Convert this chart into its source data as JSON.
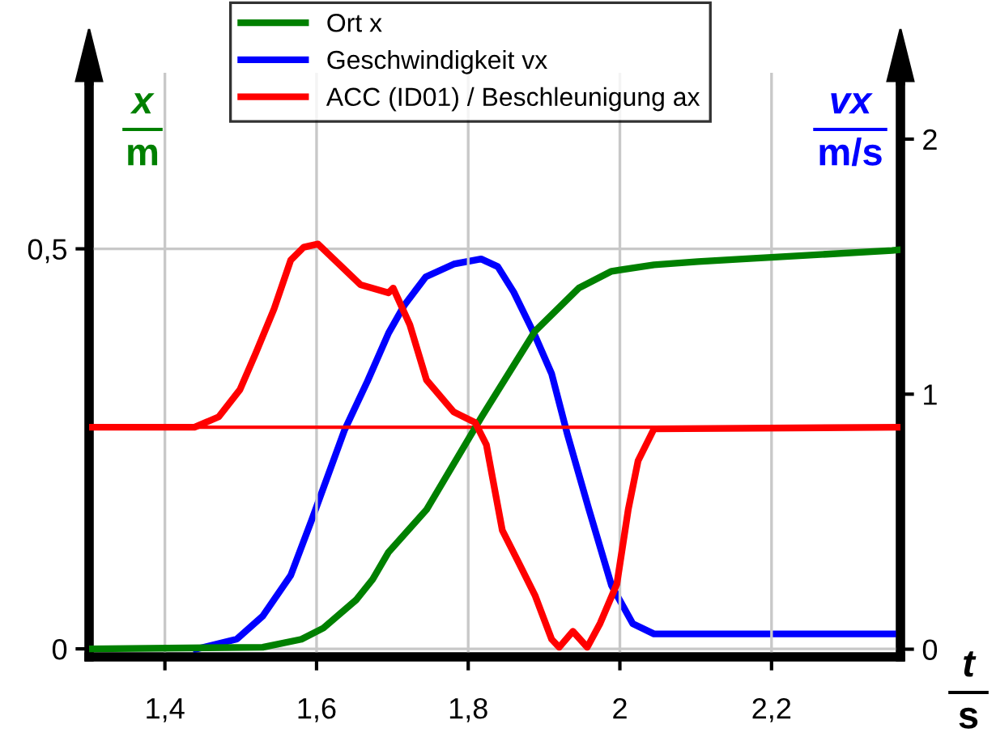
{
  "chart_data": {
    "type": "line",
    "xlabel": "t\ns",
    "ylabel": "x\nm",
    "y2label": "vx\nm/s",
    "xlim": [
      1.3,
      2.37
    ],
    "xticks": [
      {
        "value": 1.4,
        "label": "1,4"
      },
      {
        "value": 1.6,
        "label": "1,6"
      },
      {
        "value": 1.8,
        "label": "1,8"
      },
      {
        "value": 2,
        "label": "2"
      },
      {
        "value": 2.2,
        "label": "2,2"
      }
    ],
    "ylim": [
      -0.01,
      0.72
    ],
    "yticks": [
      0,
      {
        "value": 0.5,
        "label": "0,5"
      }
    ],
    "y2lim": [
      -0.03,
      2.26
    ],
    "y2ticks": [
      0,
      1,
      2
    ],
    "grid": true,
    "legend": "top",
    "line_style": "solid",
    "marker": "none",
    "ref_lines": [
      {
        "axis": "y",
        "value": 0.277,
        "color": "#ff0000"
      }
    ],
    "series": [
      {
        "name": "Ort x",
        "color": "#008000",
        "x": [
          1.3,
          1.529,
          1.58,
          1.609,
          1.652,
          1.674,
          1.695,
          1.745,
          1.817,
          1.888,
          1.946,
          1.989,
          2.045,
          2.103,
          2.176,
          2.359,
          2.37
        ],
        "values": [
          0,
          0.002,
          0.012,
          0.026,
          0.061,
          0.087,
          0.121,
          0.174,
          0.289,
          0.397,
          0.451,
          0.472,
          0.48,
          0.484,
          0.488,
          0.498,
          0.499
        ]
      },
      {
        "name": "Geschwindigkeit vx",
        "color": "#0000ff",
        "axis": "y2",
        "x": [
          1.441,
          1.495,
          1.529,
          1.566,
          1.594,
          1.637,
          1.667,
          1.695,
          1.716,
          1.744,
          1.781,
          1.817,
          1.839,
          1.86,
          1.888,
          1.91,
          1.931,
          1.959,
          1.989,
          2.017,
          2.045,
          2.37
        ],
        "values": [
          0,
          0.04,
          0.13,
          0.29,
          0.51,
          0.86,
          1.05,
          1.24,
          1.35,
          1.46,
          1.51,
          1.53,
          1.5,
          1.4,
          1.23,
          1.08,
          0.84,
          0.55,
          0.25,
          0.1,
          0.06,
          0.06
        ]
      },
      {
        "name": "ACC (ID01) / Beschleunigung ax",
        "color": "#ff0000",
        "x": [
          1.3,
          1.439,
          1.471,
          1.499,
          1.52,
          1.544,
          1.566,
          1.583,
          1.602,
          1.624,
          1.658,
          1.695,
          1.701,
          1.723,
          1.745,
          1.781,
          1.809,
          1.824,
          1.845,
          1.867,
          1.888,
          1.91,
          1.92,
          1.938,
          1.957,
          1.974,
          1.996,
          2.011,
          2.024,
          2.045,
          2.37
        ],
        "values": [
          0.277,
          0.277,
          0.29,
          0.324,
          0.37,
          0.425,
          0.486,
          0.502,
          0.506,
          0.486,
          0.455,
          0.445,
          0.451,
          0.405,
          0.336,
          0.296,
          0.283,
          0.255,
          0.148,
          0.107,
          0.067,
          0.012,
          0.002,
          0.022,
          0.002,
          0.032,
          0.081,
          0.174,
          0.235,
          0.275,
          0.277
        ]
      }
    ]
  }
}
